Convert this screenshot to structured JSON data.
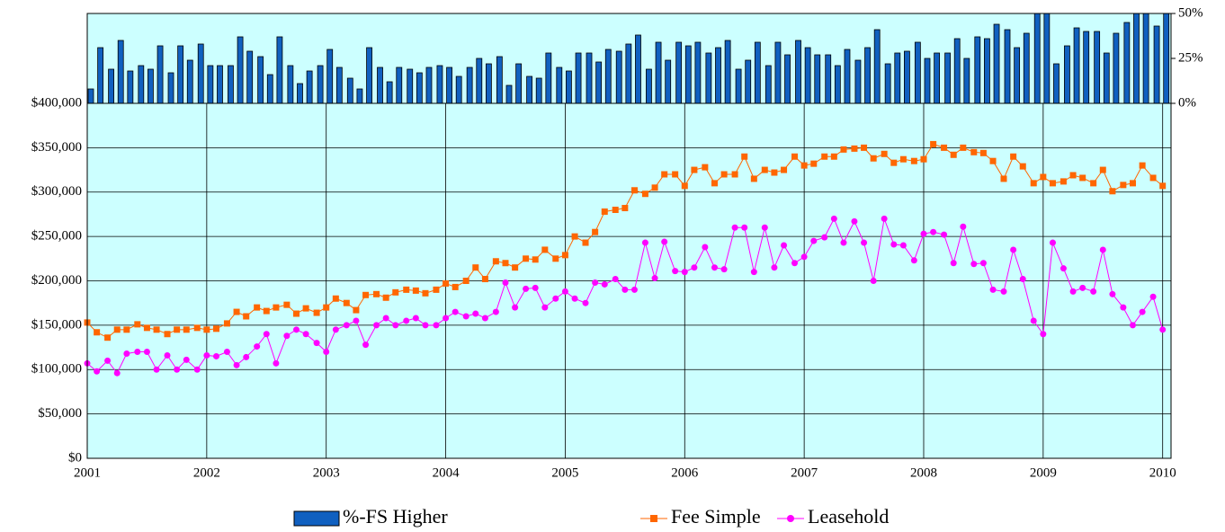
{
  "chart_data": {
    "type": "combo",
    "x": [
      2001,
      2001.08,
      2001.17,
      2001.25,
      2001.33,
      2001.42,
      2001.5,
      2001.58,
      2001.67,
      2001.75,
      2001.83,
      2001.92,
      2002,
      2002.08,
      2002.17,
      2002.25,
      2002.33,
      2002.42,
      2002.5,
      2002.58,
      2002.67,
      2002.75,
      2002.83,
      2002.92,
      2003,
      2003.08,
      2003.17,
      2003.25,
      2003.33,
      2003.42,
      2003.5,
      2003.58,
      2003.67,
      2003.75,
      2003.83,
      2003.92,
      2004,
      2004.08,
      2004.17,
      2004.25,
      2004.33,
      2004.42,
      2004.5,
      2004.58,
      2004.67,
      2004.75,
      2004.83,
      2004.92,
      2005,
      2005.08,
      2005.17,
      2005.25,
      2005.33,
      2005.42,
      2005.5,
      2005.58,
      2005.67,
      2005.75,
      2005.83,
      2005.92,
      2006,
      2006.08,
      2006.17,
      2006.25,
      2006.33,
      2006.42,
      2006.5,
      2006.58,
      2006.67,
      2006.75,
      2006.83,
      2006.92,
      2007,
      2007.08,
      2007.17,
      2007.25,
      2007.33,
      2007.42,
      2007.5,
      2007.58,
      2007.67,
      2007.75,
      2007.83,
      2007.92,
      2008,
      2008.08,
      2008.17,
      2008.25,
      2008.33,
      2008.42,
      2008.5,
      2008.58,
      2008.67,
      2008.75,
      2008.83,
      2008.92,
      2009,
      2009.08,
      2009.17,
      2009.25,
      2009.33,
      2009.42,
      2009.5,
      2009.58,
      2009.67,
      2009.75,
      2009.83,
      2009.92,
      2010
    ],
    "xlim": [
      2001,
      2010.07
    ],
    "xticks": [
      2001,
      2002,
      2003,
      2004,
      2005,
      2006,
      2007,
      2008,
      2009,
      2010
    ],
    "ylim": [
      0,
      400000
    ],
    "yticks": [
      {
        "value": 0,
        "label": "$0"
      },
      {
        "value": 50000,
        "label": "$50,000"
      },
      {
        "value": 100000,
        "label": "$100,000"
      },
      {
        "value": 150000,
        "label": "$150,000"
      },
      {
        "value": 200000,
        "label": "$200,000"
      },
      {
        "value": 250000,
        "label": "$250,000"
      },
      {
        "value": 300000,
        "label": "$300,000"
      },
      {
        "value": 350000,
        "label": "$350,000"
      },
      {
        "value": 400000,
        "label": "$400,000"
      }
    ],
    "y2lim": [
      0,
      50
    ],
    "y2ticks": [
      {
        "value": 0,
        "label": "0%"
      },
      {
        "value": 25,
        "label": "25%"
      },
      {
        "value": 50,
        "label": "50%"
      }
    ],
    "grid": true,
    "series": [
      {
        "name": "%-FS Higher",
        "type": "bar",
        "axis": "y2",
        "color": "#1060c0",
        "values": [
          8,
          31,
          19,
          35,
          18,
          21,
          19,
          32,
          17,
          32,
          24,
          33,
          21,
          21,
          21,
          37,
          29,
          26,
          16,
          37,
          21,
          11,
          18,
          21,
          30,
          20,
          14,
          8,
          31,
          20,
          12,
          20,
          19,
          17,
          20,
          21,
          20,
          15,
          20,
          25,
          22,
          26,
          10,
          22,
          15,
          14,
          28,
          20,
          18,
          28,
          28,
          23,
          30,
          29,
          33,
          38,
          19,
          34,
          24,
          34,
          32,
          34,
          28,
          31,
          35,
          19,
          24,
          34,
          21,
          34,
          27,
          35,
          31,
          27,
          27,
          21,
          30,
          24,
          31,
          41,
          22,
          28,
          29,
          34,
          25,
          28,
          28,
          36,
          25,
          37,
          36,
          44,
          41,
          31,
          39,
          50,
          50,
          22,
          32,
          42,
          40,
          40,
          28,
          39,
          45,
          50,
          50,
          43,
          50
        ]
      },
      {
        "name": "Fee Simple",
        "type": "line",
        "marker": "square",
        "color": "#ff6600",
        "values": [
          153000,
          142000,
          136000,
          145000,
          145000,
          151000,
          147000,
          145000,
          140000,
          145000,
          145000,
          147000,
          145000,
          146000,
          152000,
          165000,
          160000,
          170000,
          166000,
          170000,
          173000,
          163000,
          169000,
          164000,
          170000,
          180000,
          175000,
          167000,
          184000,
          185000,
          181000,
          187000,
          190000,
          189000,
          186000,
          190000,
          197000,
          193000,
          200000,
          215000,
          202000,
          222000,
          220000,
          215000,
          225000,
          224000,
          235000,
          225000,
          229000,
          250000,
          243000,
          255000,
          278000,
          280000,
          282000,
          302000,
          298000,
          305000,
          320000,
          320000,
          307000,
          325000,
          328000,
          310000,
          320000,
          320000,
          340000,
          315000,
          325000,
          322000,
          325000,
          340000,
          330000,
          332000,
          340000,
          340000,
          348000,
          349000,
          350000,
          338000,
          343000,
          333000,
          337000,
          335000,
          337000,
          354000,
          350000,
          342000,
          350000,
          345000,
          344000,
          335000,
          315000,
          340000,
          329000,
          310000,
          317000,
          310000,
          312000,
          319000,
          316000,
          310000,
          325000,
          301000,
          308000,
          310000,
          330000,
          316000,
          307000
        ]
      },
      {
        "name": "Leasehold",
        "type": "line",
        "marker": "circle",
        "color": "#ff00ff",
        "values": [
          107000,
          98000,
          110000,
          96000,
          118000,
          120000,
          120000,
          100000,
          116000,
          100000,
          111000,
          100000,
          116000,
          115000,
          120000,
          105000,
          114000,
          126000,
          140000,
          107000,
          138000,
          145000,
          140000,
          130000,
          120000,
          145000,
          150000,
          155000,
          128000,
          150000,
          158000,
          150000,
          155000,
          158000,
          150000,
          150000,
          158000,
          165000,
          160000,
          163000,
          158000,
          165000,
          198000,
          170000,
          191000,
          192000,
          170000,
          180000,
          188000,
          180000,
          175000,
          198000,
          196000,
          202000,
          190000,
          190000,
          243000,
          203000,
          244000,
          211000,
          210000,
          215000,
          238000,
          215000,
          213000,
          260000,
          260000,
          210000,
          260000,
          215000,
          240000,
          220000,
          227000,
          245000,
          249000,
          270000,
          243000,
          267000,
          243000,
          200000,
          270000,
          241000,
          240000,
          223000,
          253000,
          255000,
          252000,
          220000,
          261000,
          219000,
          220000,
          190000,
          188000,
          235000,
          202000,
          155000,
          140000,
          243000,
          214000,
          188000,
          192000,
          188000,
          235000,
          185000,
          170000,
          150000,
          165000,
          182000,
          145000
        ]
      }
    ]
  }
}
